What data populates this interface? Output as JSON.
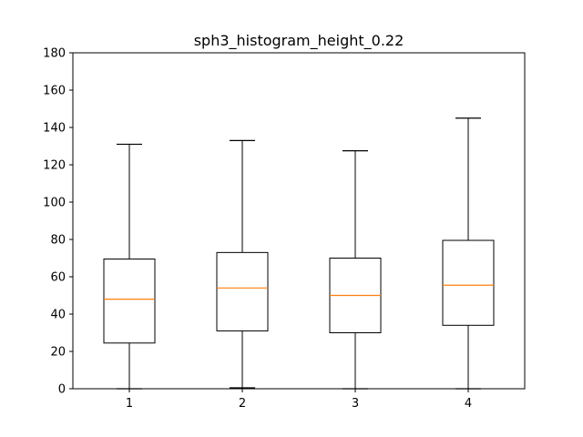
{
  "chart_data": {
    "type": "boxplot",
    "title": "sph3_histogram_height_0.22",
    "xlabel": "",
    "ylabel": "",
    "categories": [
      "1",
      "2",
      "3",
      "4"
    ],
    "ylim": [
      0,
      180
    ],
    "yticks": [
      0,
      20,
      40,
      60,
      80,
      100,
      120,
      140,
      160,
      180
    ],
    "grid": false,
    "boxes": [
      {
        "label": "1",
        "whisker_low": 0,
        "q1": 24.5,
        "median": 48,
        "q3": 69.5,
        "whisker_high": 131
      },
      {
        "label": "2",
        "whisker_low": 0.5,
        "q1": 31,
        "median": 54,
        "q3": 73,
        "whisker_high": 133
      },
      {
        "label": "3",
        "whisker_low": 0,
        "q1": 30,
        "median": 50,
        "q3": 70,
        "whisker_high": 127.5
      },
      {
        "label": "4",
        "whisker_low": 0,
        "q1": 34,
        "median": 55.5,
        "q3": 79.5,
        "whisker_high": 145
      }
    ],
    "colors": {
      "box": "#000000",
      "median": "#ff7f0e",
      "background": "#ffffff"
    }
  }
}
